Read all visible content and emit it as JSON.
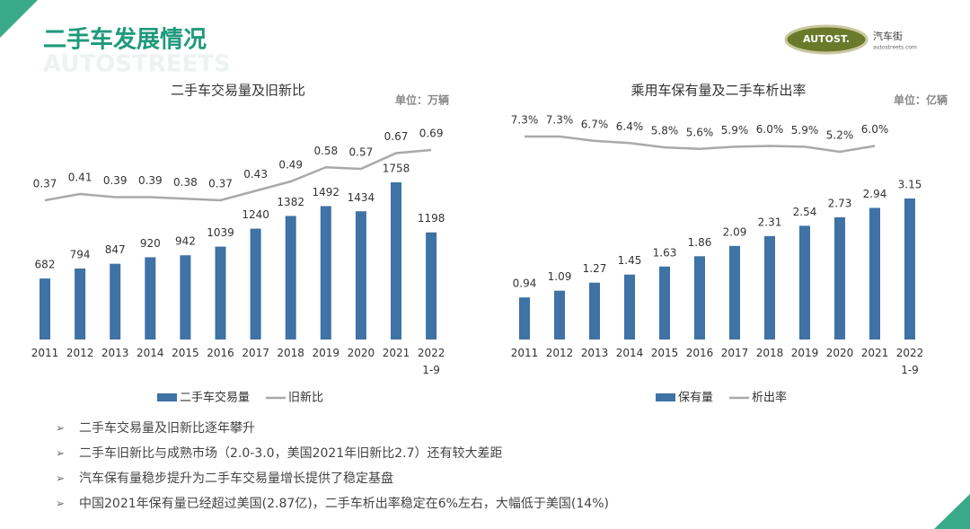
{
  "title": "二手车发展情况",
  "watermark": "AUTOSTREETS",
  "logo": {
    "mark": "AUTOST.",
    "name": "汽车街",
    "site": "autostreets.com"
  },
  "chart_data": [
    {
      "type": "bar",
      "title": "二手车交易量及旧新比",
      "unit": "单位：万辆",
      "categories": [
        "2011",
        "2012",
        "2013",
        "2014",
        "2015",
        "2016",
        "2017",
        "2018",
        "2019",
        "2020",
        "2021",
        "2022\n1-9"
      ],
      "series": [
        {
          "name": "二手车交易量",
          "type": "bar",
          "color": "#3f72a5",
          "values": [
            682,
            794,
            847,
            920,
            942,
            1039,
            1240,
            1382,
            1492,
            1434,
            1758,
            1198
          ]
        },
        {
          "name": "旧新比",
          "type": "line",
          "color": "#a9a9a9",
          "values": [
            0.37,
            0.41,
            0.39,
            0.39,
            0.38,
            0.37,
            0.43,
            0.49,
            0.58,
            0.57,
            0.67,
            0.69
          ]
        }
      ]
    },
    {
      "type": "bar",
      "title": "乘用车保有量及二手车析出率",
      "unit": "单位：亿辆",
      "categories": [
        "2011",
        "2012",
        "2013",
        "2014",
        "2015",
        "2016",
        "2017",
        "2018",
        "2019",
        "2020",
        "2021",
        "2022\n1-9"
      ],
      "series": [
        {
          "name": "保有量",
          "type": "bar",
          "color": "#3f72a5",
          "values": [
            0.94,
            1.09,
            1.27,
            1.45,
            1.63,
            1.86,
            2.09,
            2.31,
            2.54,
            2.73,
            2.94,
            3.15
          ]
        },
        {
          "name": "析出率",
          "type": "line",
          "color": "#a9a9a9",
          "values": [
            7.3,
            7.3,
            6.7,
            6.4,
            5.8,
            5.6,
            5.9,
            6.0,
            5.9,
            5.2,
            6.0,
            null
          ],
          "value_labels": [
            "7.3%",
            "7.3%",
            "6.7%",
            "6.4%",
            "5.8%",
            "5.6%",
            "5.9%",
            "6.0%",
            "5.9%",
            "5.2%",
            "6.0%",
            null
          ]
        }
      ]
    }
  ],
  "bullets": [
    "二手车交易量及旧新比逐年攀升",
    "二手车旧新比与成熟市场（2.0-3.0，美国2021年旧新比2.7）还有较大差距",
    "汽车保有量稳步提升为二手车交易量增长提供了稳定基盘",
    "中国2021年保有量已经超过美国(2.87亿)，二手车析出率稳定在6%左右，大幅低于美国(14%)"
  ]
}
